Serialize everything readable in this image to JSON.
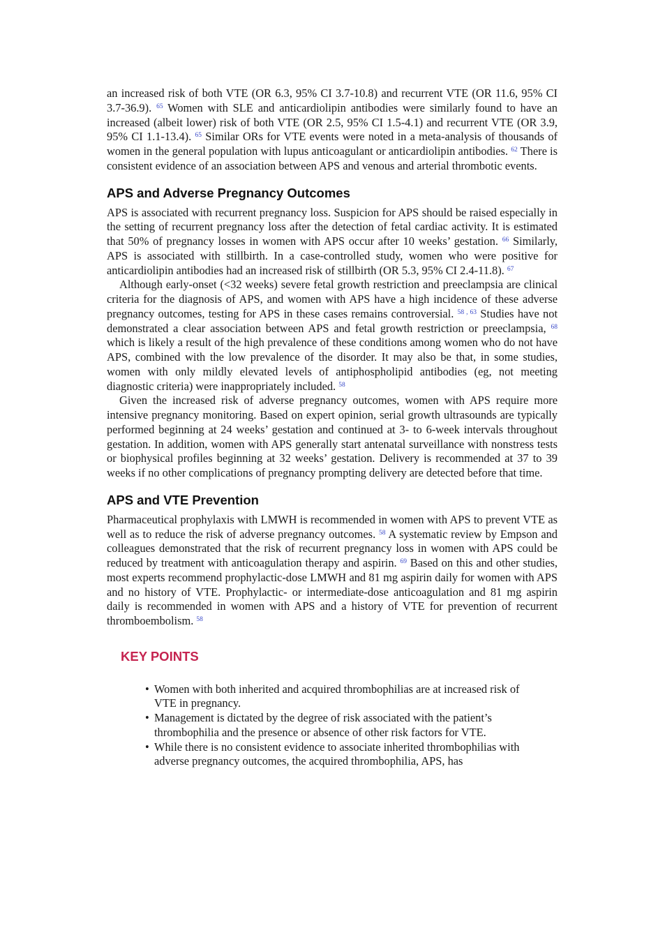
{
  "intro": [
    {
      "parts": [
        {
          "t": "an increased risk of both VTE (OR 6.3, 95% CI 3.7-10.8) and recurrent VTE (OR 11.6, 95% CI 3.7-36.9). "
        },
        {
          "cite": "65"
        },
        {
          "t": " Women with SLE and anticardiolipin antibodies were similarly found to have an increased (albeit lower) risk of both VTE (OR 2.5, 95% CI 1.5-4.1) and recurrent VTE (OR 3.9, 95% CI 1.1-13.4). "
        },
        {
          "cite": "65"
        },
        {
          "t": " Similar ORs for VTE events were noted in a meta-analysis of thousands of women in the general population with lupus anticoagulant or anticardiolipin antibodies. "
        },
        {
          "cite": "62"
        },
        {
          "t": " There is consistent evidence of an association between APS and venous and arterial thrombotic events."
        }
      ]
    }
  ],
  "sections": [
    {
      "heading": "APS and Adverse Pregnancy Outcomes",
      "paragraphs": [
        {
          "parts": [
            {
              "t": "APS is associated with recurrent pregnancy loss. Suspicion for APS should be raised especially in the setting of recurrent pregnancy loss after the detection of fetal cardiac activity. It is estimated that 50% of pregnancy losses in women with APS occur after 10 weeks’ gestation. "
            },
            {
              "cite": "66"
            },
            {
              "t": " Similarly, APS is associated with stillbirth. In a case-controlled study, women who were positive for anticardiolipin antibodies had an increased risk of stillbirth (OR 5.3, 95% CI 2.4-11.8). "
            },
            {
              "cite": "67"
            }
          ]
        },
        {
          "parts": [
            {
              "t": "Although early-onset (<32 weeks) severe fetal growth restriction and preeclampsia are clinical criteria for the diagnosis of APS, and women with APS have a high incidence of these adverse pregnancy outcomes, testing for APS in these cases remains controversial. "
            },
            {
              "cite": "58"
            },
            {
              "sep": ","
            },
            {
              "cite": "63"
            },
            {
              "t": " Studies have not demonstrated a clear association between APS and fetal growth restriction or preeclampsia, "
            },
            {
              "cite": "68"
            },
            {
              "t": " which is likely a result of the high prevalence of these conditions among women who do not have APS, combined with the low prevalence of the disorder. It may also be that, in some studies, women with only mildly elevated levels of antiphospholipid antibodies (eg, not meeting diagnostic criteria) were inappropriately included. "
            },
            {
              "cite": "58"
            }
          ]
        },
        {
          "parts": [
            {
              "t": "Given the increased risk of adverse pregnancy outcomes, women with APS require more intensive pregnancy monitoring. Based on expert opinion, serial growth ultrasounds are typically performed beginning at 24 weeks’ gestation and continued at 3- to 6-week intervals throughout gestation. In addition, women with APS generally start antenatal surveillance with nonstress tests or biophysical profiles beginning at 32 weeks’ gestation. Delivery is recommended at 37 to 39 weeks if no other complications of pregnancy prompting delivery are detected before that time."
            }
          ]
        }
      ]
    },
    {
      "heading": "APS and VTE Prevention",
      "paragraphs": [
        {
          "parts": [
            {
              "t": "Pharmaceutical prophylaxis with LMWH is recommended in women with APS to prevent VTE as well as to reduce the risk of adverse pregnancy outcomes. "
            },
            {
              "cite": "58"
            },
            {
              "t": " A systematic review by Empson and colleagues demonstrated that the risk of recurrent pregnancy loss in women with APS could be reduced by treatment with anticoagulation therapy and aspirin. "
            },
            {
              "cite": "69"
            },
            {
              "t": " Based on this and other studies, most experts recommend prophylactic-dose LMWH and 81 mg aspirin daily for women with APS and no history of VTE. Prophylactic- or intermediate-dose anticoagulation and 81 mg aspirin daily is recommended in women with APS and a history of VTE for prevention of recurrent thromboembolism. "
            },
            {
              "cite": "58"
            }
          ]
        }
      ]
    }
  ],
  "key_points": {
    "title": "KEY POINTS",
    "items": [
      "Women with both inherited and acquired thrombophilias are at increased risk of VTE in pregnancy.",
      "Management is dictated by the degree of risk associated with the patient’s thrombophilia and the presence or absence of other risk factors for VTE.",
      "While there is no consistent evidence to associate inherited thrombophilias with adverse pregnancy outcomes, the acquired thrombophilia, APS, has"
    ]
  }
}
